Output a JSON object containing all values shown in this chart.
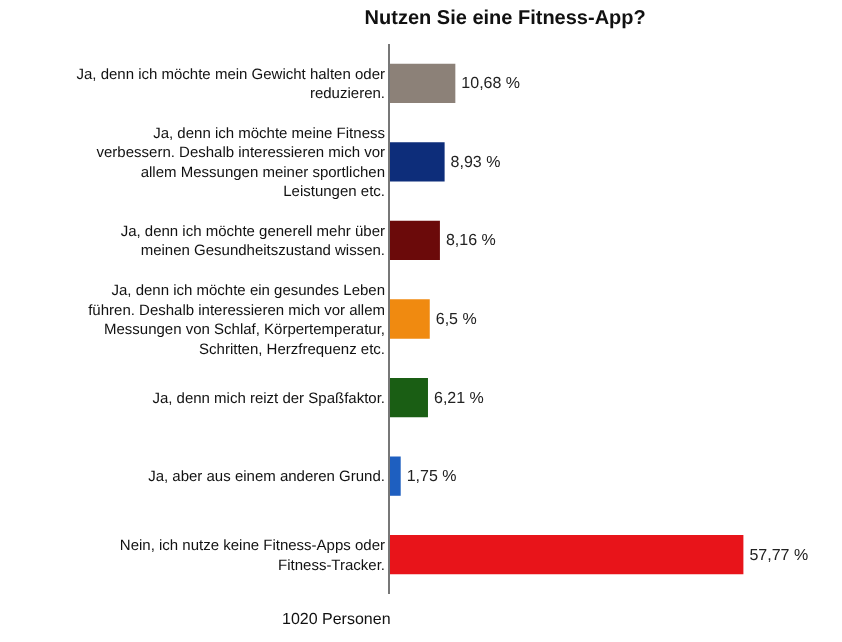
{
  "chart_data": {
    "type": "bar",
    "orientation": "horizontal",
    "title": "Nutzen Sie eine Fitness-App?",
    "categories": [
      "Ja, denn ich möchte mein Gewicht halten oder reduzieren.",
      "Ja, denn ich möchte meine Fitness verbessern. Deshalb interessieren mich vor allem Messungen meiner sportlichen Leistungen etc.",
      "Ja, denn ich möchte generell mehr über meinen Gesundheitszustand wissen.",
      "Ja, denn ich möchte ein gesundes Leben führen. Deshalb interessieren mich vor allem Messungen von Schlaf, Körpertemperatur, Schritten, Herzfrequenz etc.",
      "Ja, denn mich reizt der Spaßfaktor.",
      "Ja, aber aus einem anderen Grund.",
      "Nein, ich nutze keine Fitness-Apps oder Fitness-Tracker."
    ],
    "values": [
      10.68,
      8.93,
      8.16,
      6.5,
      6.21,
      1.75,
      57.77
    ],
    "value_labels": [
      "10,68 %",
      "8,93 %",
      "8,16 %",
      "6,5 %",
      "6,21 %",
      "1,75 %",
      "57,77 %"
    ],
    "colors": [
      "#8c8178",
      "#0d2d7a",
      "#6b0a0a",
      "#f08a10",
      "#1a5e14",
      "#1e5fc0",
      "#e8141a"
    ],
    "annotations": [
      "1020 Personen"
    ]
  }
}
